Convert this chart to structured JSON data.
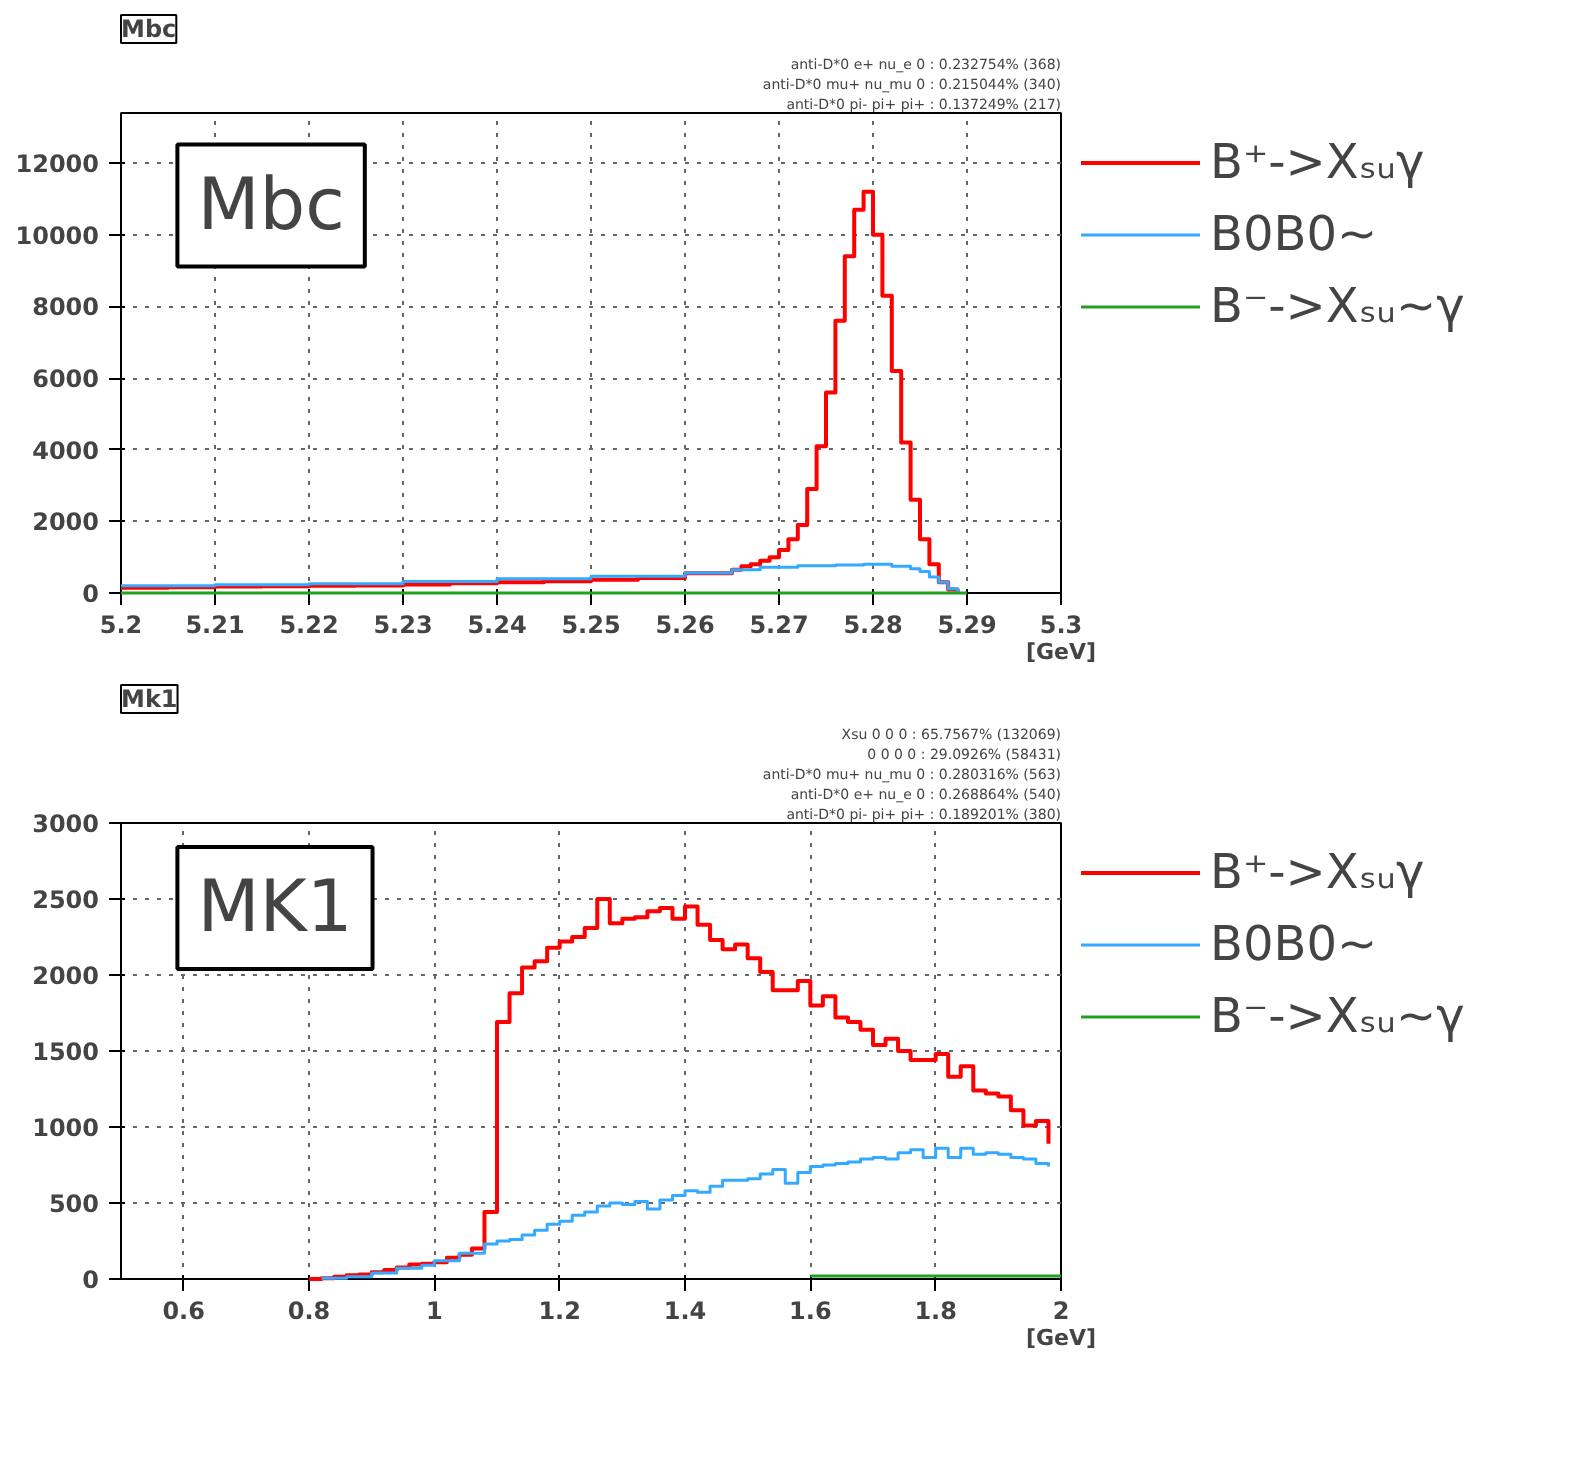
{
  "chart_data": [
    {
      "type": "step",
      "title": "Mbc",
      "subtitle": "Mbc",
      "xlabel": "[GeV]",
      "annotations": [
        "anti-D*0 e+ nu_e 0 : 0.232754% (368)",
        "anti-D*0 mu+ nu_mu 0 : 0.215044% (340)",
        "anti-D*0 pi- pi+ pi+ : 0.137249% (217)"
      ],
      "xlim": [
        5.2,
        5.3
      ],
      "xticks": [
        5.2,
        5.21,
        5.22,
        5.23,
        5.24,
        5.25,
        5.26,
        5.27,
        5.28,
        5.29,
        5.3
      ],
      "ylim": [
        0,
        13400
      ],
      "yticks": [
        0,
        2000,
        4000,
        6000,
        8000,
        10000,
        12000
      ],
      "grid": true,
      "legend": "right",
      "line_style": "solid",
      "series": [
        {
          "name": "B⁺->Xₛᵤγ",
          "color": "#ff0000",
          "x": [
            5.2,
            5.205,
            5.21,
            5.215,
            5.22,
            5.225,
            5.23,
            5.235,
            5.24,
            5.245,
            5.25,
            5.255,
            5.26,
            5.265,
            5.266,
            5.267,
            5.268,
            5.269,
            5.27,
            5.271,
            5.272,
            5.273,
            5.274,
            5.275,
            5.276,
            5.277,
            5.278,
            5.279,
            5.28,
            5.281,
            5.282,
            5.283,
            5.284,
            5.285,
            5.286,
            5.287,
            5.288,
            5.289
          ],
          "values": [
            150,
            160,
            180,
            190,
            200,
            210,
            240,
            270,
            300,
            330,
            370,
            420,
            550,
            650,
            750,
            800,
            900,
            1000,
            1200,
            1500,
            1900,
            2900,
            4100,
            5600,
            7600,
            9400,
            10700,
            11200,
            10000,
            8300,
            6200,
            4200,
            2600,
            1500,
            800,
            300,
            100,
            0
          ]
        },
        {
          "name": "B0B0~",
          "color": "#33aaff",
          "x": [
            5.2,
            5.21,
            5.22,
            5.23,
            5.24,
            5.25,
            5.26,
            5.265,
            5.268,
            5.272,
            5.276,
            5.279,
            5.282,
            5.284,
            5.285,
            5.286,
            5.287,
            5.288,
            5.289
          ],
          "values": [
            200,
            230,
            260,
            320,
            400,
            470,
            560,
            650,
            720,
            760,
            780,
            800,
            750,
            680,
            600,
            450,
            300,
            120,
            0
          ]
        },
        {
          "name": "B⁻->Xₛᵤ~γ",
          "color": "#22a022",
          "x": [
            5.2,
            5.29
          ],
          "values": [
            0,
            0
          ]
        }
      ]
    },
    {
      "type": "step",
      "title": "Mk1",
      "subtitle": "MK1",
      "xlabel": "[GeV]",
      "annotations": [
        "Xsu 0 0 0 : 65.7567% (132069)",
        "0 0 0 0 : 29.0926% (58431)",
        "anti-D*0 mu+ nu_mu 0 : 0.280316% (563)",
        "anti-D*0 e+ nu_e 0 : 0.268864% (540)",
        "anti-D*0 pi- pi+ pi+ : 0.189201% (380)"
      ],
      "xlim": [
        0.5,
        2
      ],
      "xticks": [
        0.6,
        0.8,
        1,
        1.2,
        1.4,
        1.6,
        1.8,
        2
      ],
      "ylim": [
        0,
        3000
      ],
      "yticks": [
        0,
        500,
        1000,
        1500,
        2000,
        2500,
        3000
      ],
      "grid": true,
      "legend": "right",
      "line_style": "solid",
      "series": [
        {
          "name": "B⁺->Xₛᵤγ",
          "color": "#ff0000",
          "x": [
            0.8,
            0.82,
            0.84,
            0.86,
            0.88,
            0.9,
            0.92,
            0.94,
            0.96,
            0.98,
            1.0,
            1.02,
            1.04,
            1.06,
            1.08,
            1.1,
            1.12,
            1.14,
            1.16,
            1.18,
            1.2,
            1.22,
            1.24,
            1.26,
            1.28,
            1.3,
            1.32,
            1.34,
            1.36,
            1.38,
            1.4,
            1.42,
            1.44,
            1.46,
            1.48,
            1.5,
            1.52,
            1.54,
            1.56,
            1.58,
            1.6,
            1.62,
            1.64,
            1.66,
            1.68,
            1.7,
            1.72,
            1.74,
            1.76,
            1.78,
            1.8,
            1.82,
            1.84,
            1.86,
            1.88,
            1.9,
            1.92,
            1.94,
            1.96,
            1.98
          ],
          "values": [
            0,
            5,
            15,
            25,
            30,
            45,
            60,
            75,
            95,
            100,
            110,
            140,
            160,
            200,
            440,
            1690,
            1880,
            2050,
            2090,
            2180,
            2220,
            2250,
            2310,
            2500,
            2340,
            2370,
            2380,
            2420,
            2440,
            2370,
            2450,
            2330,
            2230,
            2170,
            2200,
            2110,
            2020,
            1900,
            1900,
            1960,
            1800,
            1860,
            1720,
            1690,
            1640,
            1540,
            1580,
            1500,
            1440,
            1440,
            1480,
            1330,
            1400,
            1240,
            1220,
            1200,
            1110,
            1010,
            1040,
            890
          ]
        },
        {
          "name": "B0B0~",
          "color": "#33aaff",
          "x": [
            0.82,
            0.86,
            0.9,
            0.94,
            0.98,
            1.0,
            1.04,
            1.08,
            1.1,
            1.12,
            1.14,
            1.16,
            1.18,
            1.2,
            1.22,
            1.24,
            1.26,
            1.28,
            1.3,
            1.32,
            1.34,
            1.36,
            1.38,
            1.4,
            1.42,
            1.44,
            1.46,
            1.48,
            1.5,
            1.52,
            1.54,
            1.56,
            1.58,
            1.6,
            1.62,
            1.64,
            1.66,
            1.68,
            1.7,
            1.72,
            1.74,
            1.76,
            1.78,
            1.8,
            1.82,
            1.84,
            1.86,
            1.88,
            1.9,
            1.92,
            1.94,
            1.96,
            1.98
          ],
          "values": [
            5,
            15,
            40,
            70,
            90,
            120,
            170,
            230,
            250,
            260,
            290,
            320,
            360,
            380,
            420,
            440,
            480,
            500,
            490,
            510,
            460,
            520,
            550,
            580,
            570,
            610,
            650,
            650,
            660,
            690,
            720,
            630,
            700,
            740,
            750,
            760,
            770,
            790,
            800,
            790,
            830,
            850,
            800,
            860,
            800,
            860,
            820,
            830,
            820,
            800,
            790,
            760,
            740
          ]
        },
        {
          "name": "B⁻->Xₛᵤ~γ",
          "color": "#22a022",
          "x": [
            1.6,
            2.0
          ],
          "values": [
            20,
            20
          ]
        }
      ]
    }
  ]
}
